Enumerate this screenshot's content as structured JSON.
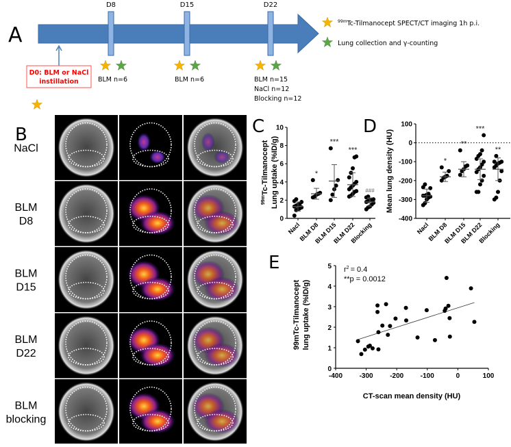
{
  "panel_labels": {
    "a": "A",
    "b": "B",
    "c": "C",
    "d": "D",
    "e": "E"
  },
  "timeline": {
    "days": [
      "D8",
      "D15",
      "D22"
    ],
    "groups": {
      "d8": "BLM n=6",
      "d15": "BLM n=6",
      "d22": [
        "BLM n=15",
        "NaCl n=12",
        "Blocking n=12"
      ]
    },
    "d0_box": [
      "D0: BLM or NaCl",
      "instillation"
    ],
    "legend": {
      "imaging_sup": "99m",
      "imaging": "Tc-Tilmanocept SPECT/CT imaging 1h p.i.",
      "collection": "Lung collection and γ-counting"
    },
    "colors": {
      "arrow": "#4a7ebb",
      "star_yellow": "#f5b400",
      "star_green": "#5aa646",
      "d0_red": "#ff0000"
    }
  },
  "panel_b": {
    "rows": [
      [
        "NaCl"
      ],
      [
        "BLM",
        "D8"
      ],
      [
        "BLM",
        "D15"
      ],
      [
        "BLM",
        "D22"
      ],
      [
        "BLM",
        "blocking"
      ]
    ]
  },
  "chart_data": [
    {
      "id": "C",
      "type": "scatter",
      "ylabel_sup": "99m",
      "ylabel_1": "Tc-Tilmanocept",
      "ylabel_2": "Lung uptake (%ID/g)",
      "categories": [
        "Nacl",
        "BLM D8",
        "BLM D15",
        "BLM D22",
        "Blocking"
      ],
      "ylim": [
        0,
        10
      ],
      "yticks": [
        "0",
        "2",
        "4",
        "6",
        "8",
        "10"
      ],
      "points": [
        [
          0.3,
          0.9,
          1.0,
          1.1,
          1.2,
          1.3,
          1.4,
          1.5,
          1.6,
          1.8,
          1.9,
          2.1
        ],
        [
          2.3,
          2.4,
          2.6,
          2.7,
          2.8,
          4.2
        ],
        [
          2.0,
          2.6,
          3.2,
          3.6,
          4.2,
          7.7
        ],
        [
          2.4,
          2.5,
          2.7,
          2.9,
          3.0,
          3.2,
          3.4,
          3.6,
          3.8,
          4.0,
          4.5,
          5.0,
          5.5,
          6.7,
          6.8
        ],
        [
          1.0,
          1.2,
          1.3,
          1.5,
          1.7,
          1.8,
          1.9,
          2.0,
          2.0,
          2.1,
          2.3,
          2.4
        ]
      ],
      "mean": [
        1.3,
        2.7,
        4.1,
        3.7,
        1.8
      ],
      "sd": [
        0.5,
        0.6,
        1.8,
        1.3,
        0.45
      ],
      "annotations": [
        "",
        "*",
        "***",
        "***",
        "###"
      ]
    },
    {
      "id": "D",
      "type": "scatter",
      "ylabel": "Mean lung density (HU)",
      "categories": [
        "Nacl",
        "BLM D8",
        "BLM D15",
        "BLM D22",
        "Blocking"
      ],
      "ylim": [
        -400,
        100
      ],
      "yticks": [
        "-400",
        "-300",
        "-200",
        "-100",
        "0",
        "100"
      ],
      "reference_line": 0,
      "points": [
        [
          -330,
          -320,
          -300,
          -290,
          -285,
          -280,
          -280,
          -275,
          -270,
          -240,
          -235,
          -220
        ],
        [
          -200,
          -185,
          -180,
          -175,
          -150,
          -130
        ],
        [
          -170,
          -150,
          -140,
          -125,
          -120,
          -40
        ],
        [
          -260,
          -260,
          -220,
          -200,
          -175,
          -155,
          -140,
          -130,
          -115,
          -100,
          -85,
          -70,
          -60,
          -40,
          40
        ],
        [
          -300,
          -290,
          -260,
          -200,
          -150,
          -130,
          -120,
          -110,
          -105,
          -100,
          -100,
          -70
        ]
      ],
      "mean": [
        -280,
        -180,
        -140,
        -140,
        -140
      ],
      "sd": [
        35,
        25,
        40,
        55,
        60
      ],
      "annotations": [
        "",
        "*",
        "**",
        "***",
        "**"
      ]
    },
    {
      "id": "E",
      "type": "scatter",
      "xlabel": "CT-scan mean density (HU)",
      "ylabel_1": "99mTc-Tilmanocept",
      "ylabel_2": "lung uptake (%ID/g)",
      "xlim": [
        -400,
        100
      ],
      "ylim": [
        0,
        5
      ],
      "xticks": [
        "-400",
        "-300",
        "-200",
        "-100",
        "0",
        "100"
      ],
      "yticks": [
        "0",
        "1",
        "2",
        "3",
        "4",
        "5"
      ],
      "stat_r2": "= 0.4",
      "stat_r2_prefix": "r",
      "stat_r2_sup": "2",
      "stat_p": "**p = 0.0012",
      "points": [
        [
          -327,
          1.32
        ],
        [
          -316,
          0.69
        ],
        [
          -304,
          0.91
        ],
        [
          -293,
          1.06
        ],
        [
          -288,
          1.1
        ],
        [
          -279,
          0.97
        ],
        [
          -263,
          3.06
        ],
        [
          -263,
          2.74
        ],
        [
          -260,
          1.76
        ],
        [
          -260,
          0.92
        ],
        [
          -247,
          2.08
        ],
        [
          -235,
          3.12
        ],
        [
          -229,
          1.63
        ],
        [
          -222,
          2.06
        ],
        [
          -204,
          2.42
        ],
        [
          -170,
          2.94
        ],
        [
          -169,
          2.33
        ],
        [
          -132,
          1.5
        ],
        [
          -102,
          2.83
        ],
        [
          -75,
          1.37
        ],
        [
          -43,
          2.8
        ],
        [
          -40,
          2.91
        ],
        [
          -37,
          4.4
        ],
        [
          -31,
          3.04
        ],
        [
          -27,
          2.44
        ],
        [
          -26,
          1.54
        ],
        [
          43,
          3.89
        ],
        [
          54,
          2.26
        ]
      ],
      "regression": [
        [
          -327,
          1.4
        ],
        [
          54,
          3.2
        ]
      ]
    }
  ]
}
